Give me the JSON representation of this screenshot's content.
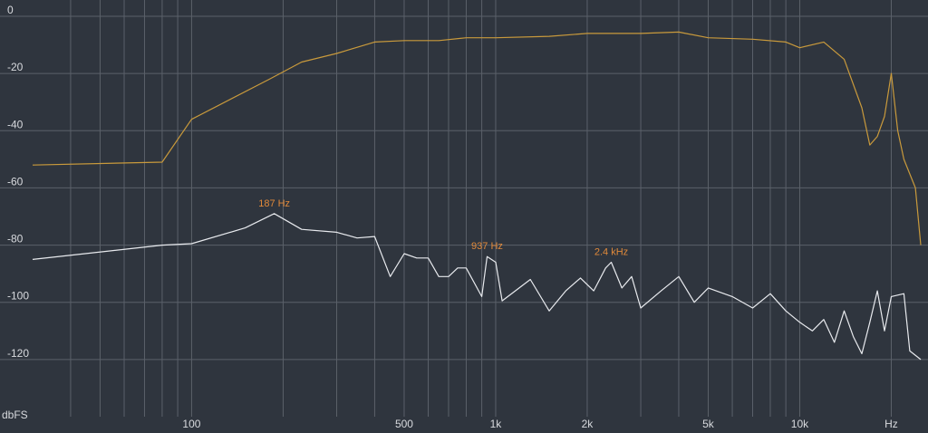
{
  "chart_data": {
    "type": "line",
    "ylabel": "dbFS",
    "xscale": "log",
    "grid": true,
    "xlim": [
      30,
      25000
    ],
    "ylim": [
      -140,
      0
    ],
    "yticks": [
      0,
      -20,
      -40,
      -60,
      -80,
      -100,
      -120
    ],
    "xticks": [
      100,
      500,
      {
        "value": 1000,
        "label": "1k"
      },
      {
        "value": 2000,
        "label": "2k"
      },
      {
        "value": 5000,
        "label": "5k"
      },
      {
        "value": 10000,
        "label": "10k"
      },
      {
        "value": 20000,
        "label": "Hz"
      }
    ],
    "xgrid": [
      40,
      50,
      60,
      70,
      80,
      90,
      100,
      200,
      300,
      400,
      500,
      600,
      700,
      800,
      900,
      1000,
      2000,
      3000,
      4000,
      5000,
      6000,
      7000,
      8000,
      9000,
      10000,
      20000
    ],
    "series": [
      {
        "color": "#c99a3c",
        "x": [
          30,
          80,
          100,
          180,
          230,
          300,
          400,
          500,
          650,
          800,
          1000,
          1500,
          2000,
          3000,
          4000,
          5000,
          7000,
          9000,
          10000,
          12000,
          14000,
          16000,
          17000,
          18000,
          19000,
          20000,
          21000,
          22000,
          24000,
          25000
        ],
        "values": [
          -52,
          -51,
          -36,
          -22,
          -16,
          -13,
          -9,
          -8.5,
          -8.5,
          -7.5,
          -7.5,
          -7,
          -6,
          -6,
          -5.5,
          -7.5,
          -8,
          -9,
          -11,
          -9,
          -15,
          -32,
          -45,
          -42,
          -35,
          -20,
          -40,
          -50,
          -60,
          -80
        ]
      },
      {
        "color": "#e8eaee",
        "x": [
          30,
          80,
          100,
          150,
          187,
          230,
          300,
          350,
          400,
          450,
          500,
          550,
          600,
          650,
          700,
          750,
          800,
          900,
          937,
          1000,
          1050,
          1300,
          1500,
          1700,
          1900,
          2100,
          2300,
          2400,
          2600,
          2800,
          3000,
          3500,
          4000,
          4500,
          5000,
          6000,
          7000,
          8000,
          9000,
          10000,
          11000,
          12000,
          13000,
          14000,
          15000,
          16000,
          17000,
          18000,
          19000,
          20000,
          22000,
          23000,
          25000
        ],
        "values": [
          -85,
          -80,
          -79.5,
          -74,
          -69,
          -74.5,
          -75.5,
          -77.5,
          -77,
          -91,
          -83,
          -84.5,
          -84.5,
          -91,
          -91,
          -88,
          -88,
          -98,
          -84,
          -86,
          -99.5,
          -92,
          -103,
          -96,
          -91.5,
          -96,
          -88,
          -86,
          -95,
          -91,
          -102,
          -96,
          -91,
          -100,
          -95,
          -98,
          -102,
          -97,
          -103,
          -107,
          -110,
          -106,
          -114,
          -103,
          -112,
          -118,
          -107,
          -96,
          -110,
          -98,
          -97,
          -117,
          -120
        ]
      }
    ],
    "annotations": [
      {
        "text": "187 Hz",
        "x": 187,
        "y": -69
      },
      {
        "text": "937 Hz",
        "x": 937,
        "y": -84
      },
      {
        "text": "2.4 kHz",
        "x": 2400,
        "y": -86
      }
    ]
  }
}
